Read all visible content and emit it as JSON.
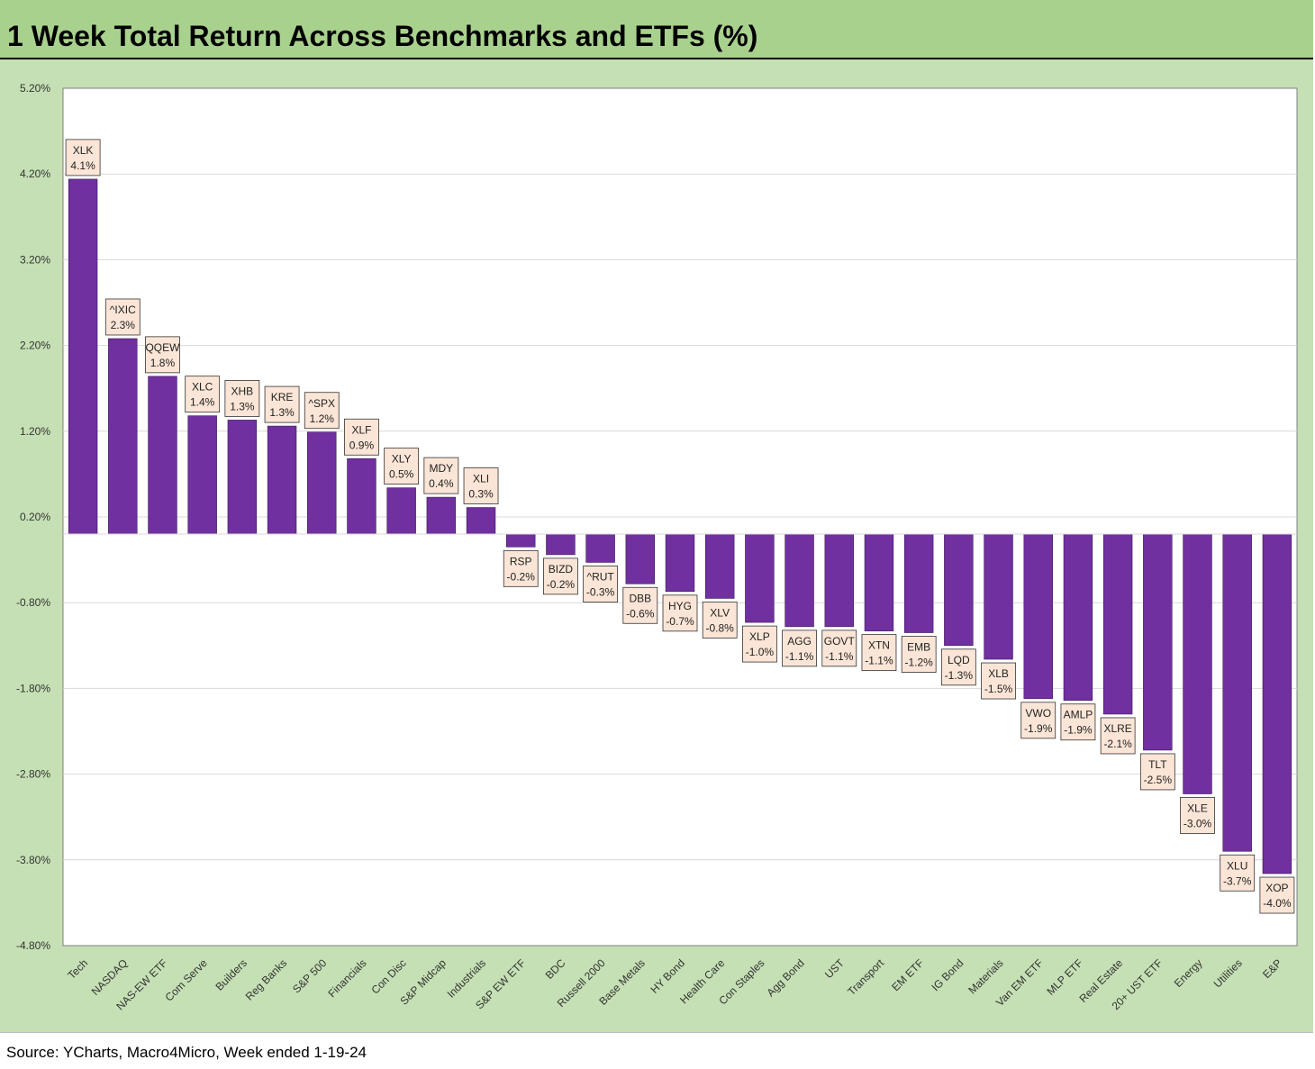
{
  "title": "1 Week Total Return Across Benchmarks and ETFs (%)",
  "source": "Source: YCharts, Macro4Micro, Week ended 1-19-24",
  "colors": {
    "bar": "#7030a0",
    "header_bg": "#a9d18e",
    "chart_bg": "#c5e0b4",
    "label_bg": "#fbe5d6"
  },
  "chart_data": {
    "type": "bar",
    "title": "1 Week Total Return Across Benchmarks and ETFs (%)",
    "xlabel": "",
    "ylabel": "",
    "ylim": [
      -4.8,
      5.2
    ],
    "yticks": [
      5.2,
      4.2,
      3.2,
      2.2,
      1.2,
      0.2,
      -0.8,
      -1.8,
      -2.8,
      -3.8,
      -4.8
    ],
    "ytick_labels": [
      "5.20%",
      "4.20%",
      "3.20%",
      "2.20%",
      "1.20%",
      "0.20%",
      "-0.80%",
      "-1.80%",
      "-2.80%",
      "-3.80%",
      "-4.80%"
    ],
    "grid": true,
    "legend": "none",
    "categories": [
      "Tech",
      "NASDAQ",
      "NAS-EW ETF",
      "Com Serve",
      "Builders",
      "Reg Banks",
      "S&P 500",
      "Financials",
      "Con Disc",
      "S&P Midcap",
      "Industrials",
      "S&P EW ETF",
      "BDC",
      "Russell 2000",
      "Base Metals",
      "HY Bond",
      "Health Care",
      "Con Staples",
      "Agg Bond",
      "UST",
      "Transport",
      "EM ETF",
      "IG Bond",
      "Materials",
      "Van EM ETF",
      "MLP ETF",
      "Real Estate",
      "20+ UST ETF",
      "Energy",
      "Utilities",
      "E&P"
    ],
    "tickers": [
      "XLK",
      "^IXIC",
      "QQEW",
      "XLC",
      "XHB",
      "KRE",
      "^SPX",
      "XLF",
      "XLY",
      "MDY",
      "XLI",
      "RSP",
      "BIZD",
      "^RUT",
      "DBB",
      "HYG",
      "XLV",
      "XLP",
      "AGG",
      "GOVT",
      "XTN",
      "EMB",
      "LQD",
      "XLB",
      "VWO",
      "AMLP",
      "XLRE",
      "TLT",
      "XLE",
      "XLU",
      "XOP"
    ],
    "values": [
      4.14,
      2.28,
      1.84,
      1.38,
      1.33,
      1.26,
      1.19,
      0.88,
      0.54,
      0.43,
      0.31,
      -0.15,
      -0.24,
      -0.33,
      -0.58,
      -0.67,
      -0.75,
      -1.03,
      -1.08,
      -1.08,
      -1.13,
      -1.15,
      -1.3,
      -1.46,
      -1.92,
      -1.94,
      -2.1,
      -2.52,
      -3.03,
      -3.7,
      -3.96
    ],
    "value_labels": [
      "4.1%",
      "2.3%",
      "1.8%",
      "1.4%",
      "1.3%",
      "1.3%",
      "1.2%",
      "0.9%",
      "0.5%",
      "0.4%",
      "0.3%",
      "-0.2%",
      "-0.2%",
      "-0.3%",
      "-0.6%",
      "-0.7%",
      "-0.8%",
      "-1.0%",
      "-1.1%",
      "-1.1%",
      "-1.1%",
      "-1.2%",
      "-1.3%",
      "-1.5%",
      "-1.9%",
      "-1.9%",
      "-2.1%",
      "-2.5%",
      "-3.0%",
      "-3.7%",
      "-4.0%"
    ]
  }
}
